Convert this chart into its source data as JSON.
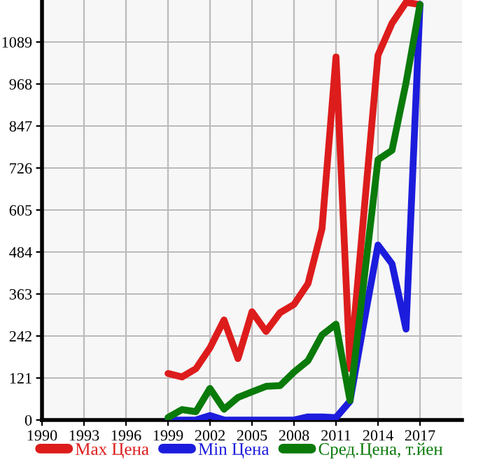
{
  "chart_data": {
    "type": "line",
    "x": [
      1999,
      2000,
      2001,
      2002,
      2003,
      2004,
      2005,
      2006,
      2007,
      2008,
      2009,
      2010,
      2011,
      2012,
      2013,
      2014,
      2015,
      2016,
      2017
    ],
    "series": [
      {
        "name": "Max Цена",
        "color": "#dd1c1c",
        "values": [
          134,
          124,
          148,
          208,
          288,
          177,
          312,
          255,
          309,
          333,
          393,
          551,
          1046,
          148,
          600,
          1051,
          1143,
          1203,
          1197
        ]
      },
      {
        "name": "Min Цена",
        "color": "#1c1cdd",
        "values": [
          0,
          0,
          0,
          13,
          0,
          0,
          0,
          0,
          0,
          0,
          9,
          9,
          7,
          54,
          282,
          504,
          450,
          262,
          1197
        ]
      },
      {
        "name": "Сред.Цена, т.йен",
        "color": "#0a7a0a",
        "values": [
          7,
          30,
          24,
          91,
          31,
          65,
          81,
          97,
          99,
          138,
          171,
          245,
          276,
          56,
          403,
          750,
          777,
          971,
          1197
        ]
      }
    ],
    "xlim": [
      1990,
      2020
    ],
    "xticks": [
      1990,
      1993,
      1996,
      1999,
      2002,
      2005,
      2008,
      2011,
      2014,
      2017
    ],
    "ylim": [
      0,
      1210
    ],
    "yticks": [
      0,
      121,
      242,
      363,
      484,
      605,
      726,
      847,
      968,
      1089
    ],
    "grid": true,
    "legend": "bottom",
    "marker": "none",
    "line_style": "solid"
  }
}
